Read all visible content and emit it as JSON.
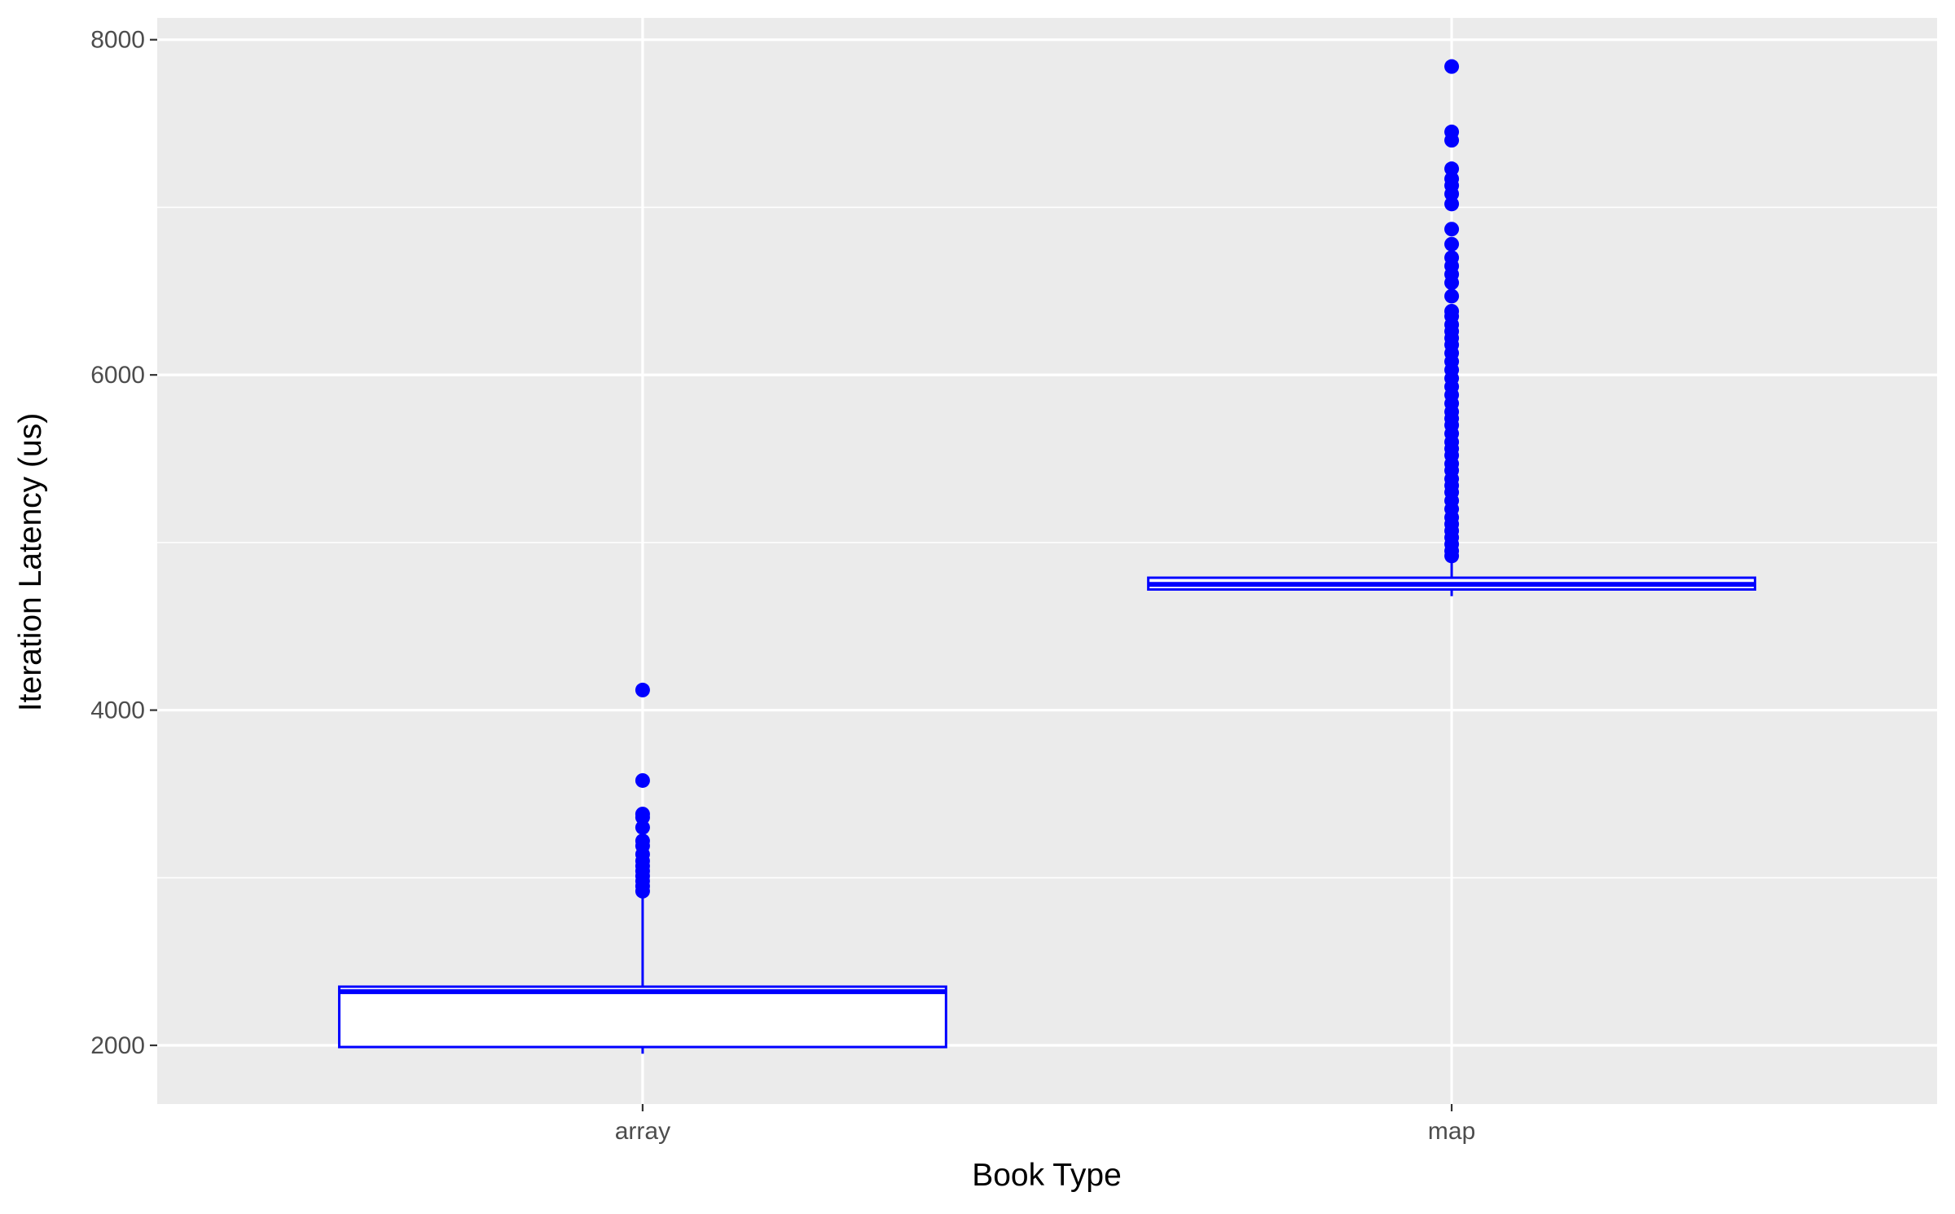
{
  "chart_data": {
    "type": "boxplot",
    "title": "",
    "xlabel": "Book Type",
    "ylabel": "Iteration Latency (us)",
    "ylim": [
      1650,
      8130
    ],
    "y_ticks": [
      2000,
      4000,
      6000,
      8000
    ],
    "y_minor_ticks": [
      3000,
      5000,
      7000
    ],
    "grid": true,
    "colors": {
      "panel": "#EBEBEB",
      "grid": "#FFFFFF",
      "box": "#0000FF",
      "box_fill": "#FFFFFF"
    },
    "categories": [
      "array",
      "map"
    ],
    "boxes": [
      {
        "category": "array",
        "min": 1950,
        "q1": 1990,
        "median": 2320,
        "q3": 2350,
        "max": 2900,
        "outliers": [
          2920,
          2950,
          2980,
          3010,
          3040,
          3070,
          3100,
          3140,
          3190,
          3220,
          3300,
          3360,
          3380,
          3580,
          4120
        ]
      },
      {
        "category": "map",
        "min": 4680,
        "q1": 4720,
        "median": 4750,
        "q3": 4790,
        "max": 4900,
        "outliers": [
          4920,
          4950,
          4990,
          5030,
          5070,
          5110,
          5150,
          5200,
          5250,
          5300,
          5340,
          5380,
          5430,
          5470,
          5520,
          5560,
          5600,
          5650,
          5700,
          5740,
          5780,
          5830,
          5880,
          5930,
          5980,
          6030,
          6080,
          6130,
          6180,
          6220,
          6260,
          6300,
          6350,
          6380,
          6470,
          6550,
          6600,
          6650,
          6700,
          6780,
          6870,
          7020,
          7080,
          7130,
          7170,
          7230,
          7400,
          7450,
          7840
        ]
      }
    ]
  }
}
